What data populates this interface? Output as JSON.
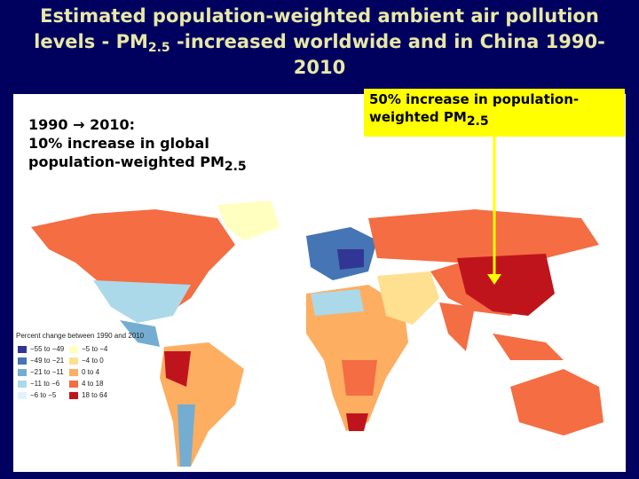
{
  "title": {
    "parts": [
      "Estimated population-weighted ambient air pollution levels - PM",
      "2.5",
      " -increased worldwide and in China 1990-2010"
    ]
  },
  "annotations": {
    "global": {
      "line1": "1990 → 2010:",
      "line2": "10% increase in global",
      "line3": "population-weighted PM",
      "sub": "2.5"
    },
    "china": {
      "text": "50% increase in population-weighted PM",
      "sub": "2.5"
    }
  },
  "legend": {
    "title": "Percent change between 1990 and 2010",
    "entries": [
      {
        "label": "−55 to −49",
        "color": "#313695"
      },
      {
        "label": "−49 to −21",
        "color": "#4575b4"
      },
      {
        "label": "−21 to −11",
        "color": "#74add1"
      },
      {
        "label": "−11 to −6",
        "color": "#abd9e9"
      },
      {
        "label": "−6 to −5",
        "color": "#e0f3f8"
      },
      {
        "label": "−5 to −4",
        "color": "#ffffbf"
      },
      {
        "label": "−4 to 0",
        "color": "#fee090"
      },
      {
        "label": "0 to 4",
        "color": "#fdae61"
      },
      {
        "label": "4 to 18",
        "color": "#f46d43"
      },
      {
        "label": "18 to 64",
        "color": "#c0141d"
      }
    ]
  }
}
